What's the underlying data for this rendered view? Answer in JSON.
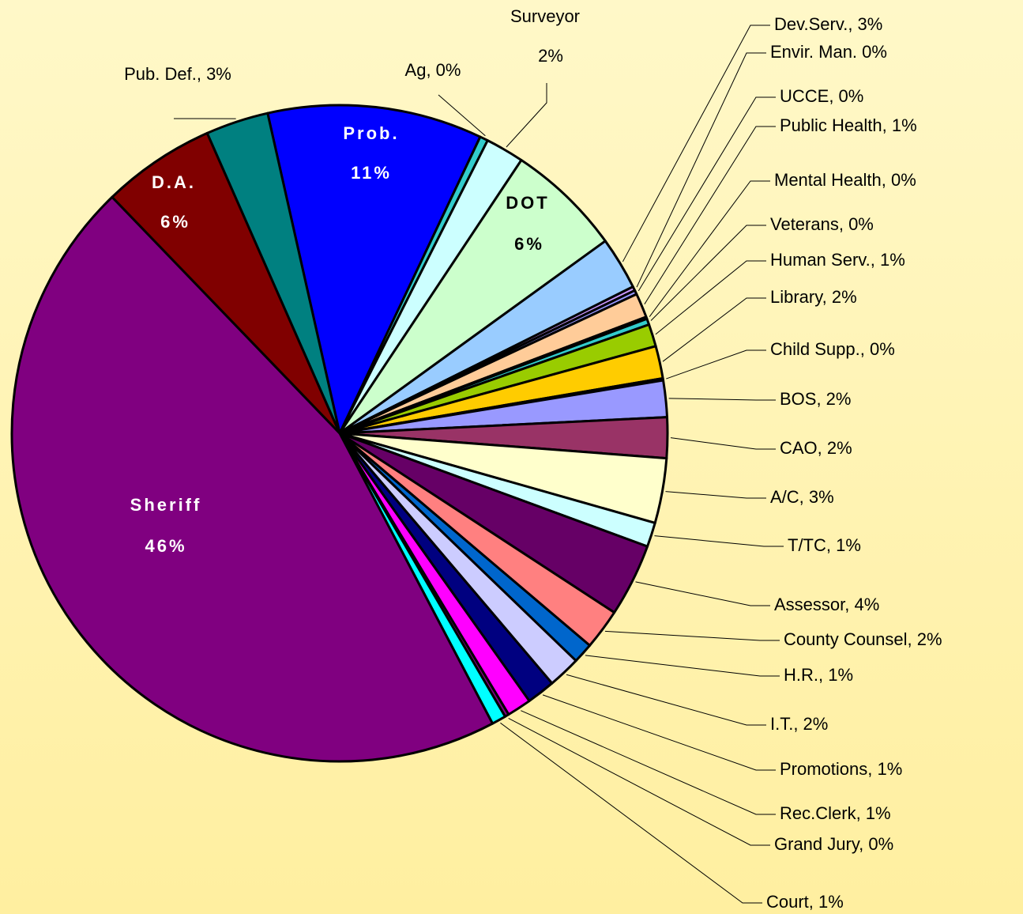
{
  "chart_data": {
    "type": "pie",
    "labels": [
      [
        "Prob.",
        "11%"
      ],
      [
        "Ag, 0%"
      ],
      [
        "Surveyor",
        "2%"
      ],
      [
        "DOT",
        "6%"
      ],
      [
        "Dev.Serv., 3%"
      ],
      [
        "Envir. Man. 0%"
      ],
      [
        "UCCE, 0%"
      ],
      [
        "Public Health, 1%"
      ],
      [
        "Mental Health, 0%"
      ],
      [
        "Veterans, 0%"
      ],
      [
        "Human Serv., 1%"
      ],
      [
        "Library, 2%"
      ],
      [
        "Child Supp., 0%"
      ],
      [
        "BOS, 2%"
      ],
      [
        "CAO, 2%"
      ],
      [
        "A/C, 3%"
      ],
      [
        "T/TC, 1%"
      ],
      [
        "Assessor, 4%"
      ],
      [
        "County Counsel, 2%"
      ],
      [
        "H.R., 1%"
      ],
      [
        "I.T., 2%"
      ],
      [
        "Promotions, 1%"
      ],
      [
        "Rec.Clerk, 1%"
      ],
      [
        "Grand Jury, 0%"
      ],
      [
        "Court, 1%"
      ],
      [
        "Sheriff",
        "46%"
      ],
      [
        "D.A.",
        "6%"
      ],
      [
        "Pub. Def., 3%"
      ]
    ],
    "values": [
      10.6,
      0.4,
      1.9,
      5.7,
      2.6,
      0.2,
      0.2,
      1.2,
      0.1,
      0.3,
      1.1,
      1.6,
      0.1,
      1.8,
      2.0,
      3.2,
      1.2,
      3.6,
      2.0,
      1.0,
      1.6,
      1.4,
      1.2,
      0.2,
      0.7,
      45.6,
      5.6,
      3.1
    ],
    "colors": [
      "#0000FF",
      "#33CCCC",
      "#CCFFFF",
      "#CCFFCC",
      "#99CCFF",
      "#CC99FF",
      "#9999FF",
      "#FFCC99",
      "#660066",
      "#33CCCC",
      "#99CC00",
      "#FFCC00",
      "#FF6600",
      "#9999FF",
      "#993366",
      "#FFFFCC",
      "#CCFFFF",
      "#660066",
      "#FF8080",
      "#0066CC",
      "#CCCCFF",
      "#000080",
      "#FF00FF",
      "#800080",
      "#00FFFF",
      "#800080",
      "#800000",
      "#008080"
    ]
  }
}
